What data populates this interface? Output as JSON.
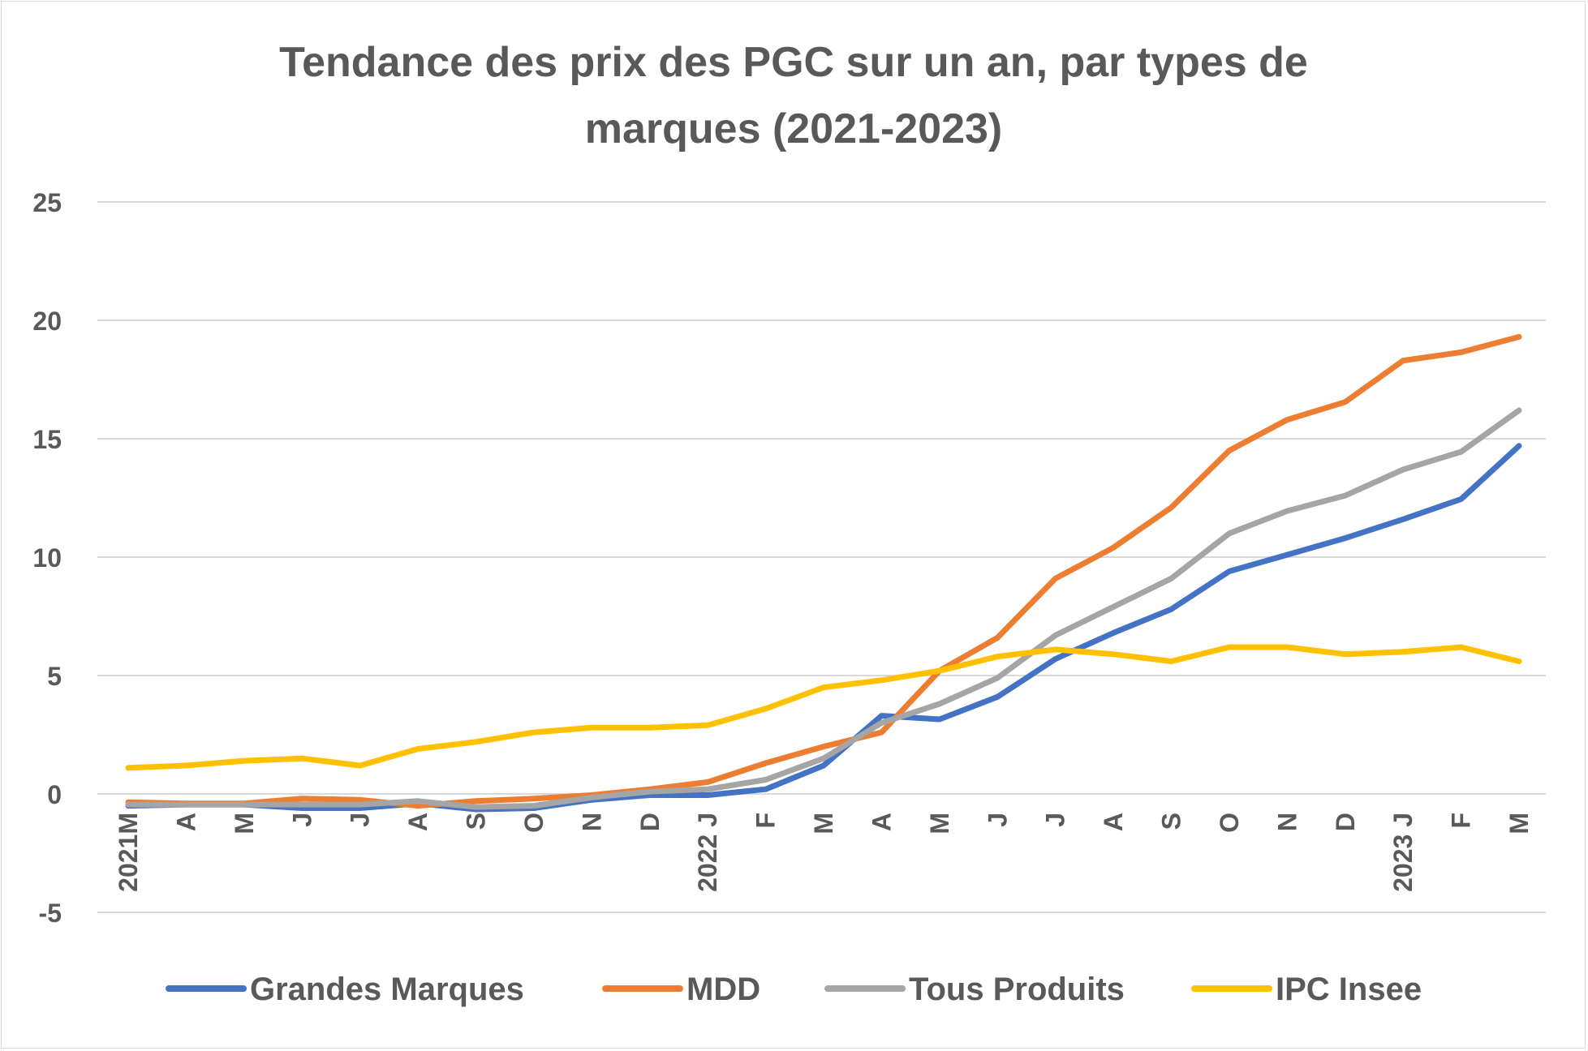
{
  "chart_data": {
    "type": "line",
    "title_lines": [
      "Tendance des prix des PGC sur un an, par types de",
      "marques (2021-2023)"
    ],
    "categories": [
      "2021M",
      "A",
      "M",
      "J",
      "J",
      "A",
      "S",
      "O",
      "N",
      "D",
      "2022 J",
      "F",
      "M",
      "A",
      "M",
      "J",
      "J",
      "A",
      "S",
      "O",
      "N",
      "D",
      "2023 J",
      "F",
      "M"
    ],
    "ylim": [
      -5,
      25
    ],
    "yticks": [
      -5,
      0,
      5,
      10,
      15,
      20,
      25
    ],
    "grid": true,
    "legend_position": "bottom",
    "series": [
      {
        "name": "Grandes Marques",
        "color": "#4472C4",
        "values": [
          -0.5,
          -0.45,
          -0.45,
          -0.6,
          -0.6,
          -0.4,
          -0.65,
          -0.6,
          -0.25,
          -0.05,
          -0.05,
          0.2,
          1.2,
          3.3,
          3.15,
          4.1,
          5.7,
          6.8,
          7.8,
          9.4,
          10.1,
          10.8,
          11.6,
          12.45,
          14.7
        ]
      },
      {
        "name": "MDD",
        "color": "#ED7D31",
        "values": [
          -0.35,
          -0.4,
          -0.4,
          -0.2,
          -0.25,
          -0.5,
          -0.3,
          -0.2,
          -0.05,
          0.2,
          0.5,
          1.3,
          2.0,
          2.6,
          5.2,
          6.6,
          9.1,
          10.4,
          12.1,
          14.5,
          15.8,
          16.55,
          18.3,
          18.65,
          19.3
        ]
      },
      {
        "name": "Tous Produits",
        "color": "#A5A5A5",
        "values": [
          -0.45,
          -0.45,
          -0.45,
          -0.45,
          -0.45,
          -0.3,
          -0.55,
          -0.5,
          -0.15,
          0.1,
          0.2,
          0.6,
          1.5,
          3.0,
          3.8,
          4.9,
          6.7,
          7.9,
          9.1,
          11.0,
          11.95,
          12.6,
          13.7,
          14.45,
          16.2
        ]
      },
      {
        "name": "IPC Insee",
        "color": "#FFC000",
        "values": [
          1.1,
          1.2,
          1.4,
          1.5,
          1.2,
          1.9,
          2.2,
          2.6,
          2.8,
          2.8,
          2.9,
          3.6,
          4.5,
          4.8,
          5.2,
          5.8,
          6.1,
          5.9,
          5.6,
          6.2,
          6.2,
          5.9,
          6.0,
          6.2,
          5.6
        ]
      }
    ]
  }
}
